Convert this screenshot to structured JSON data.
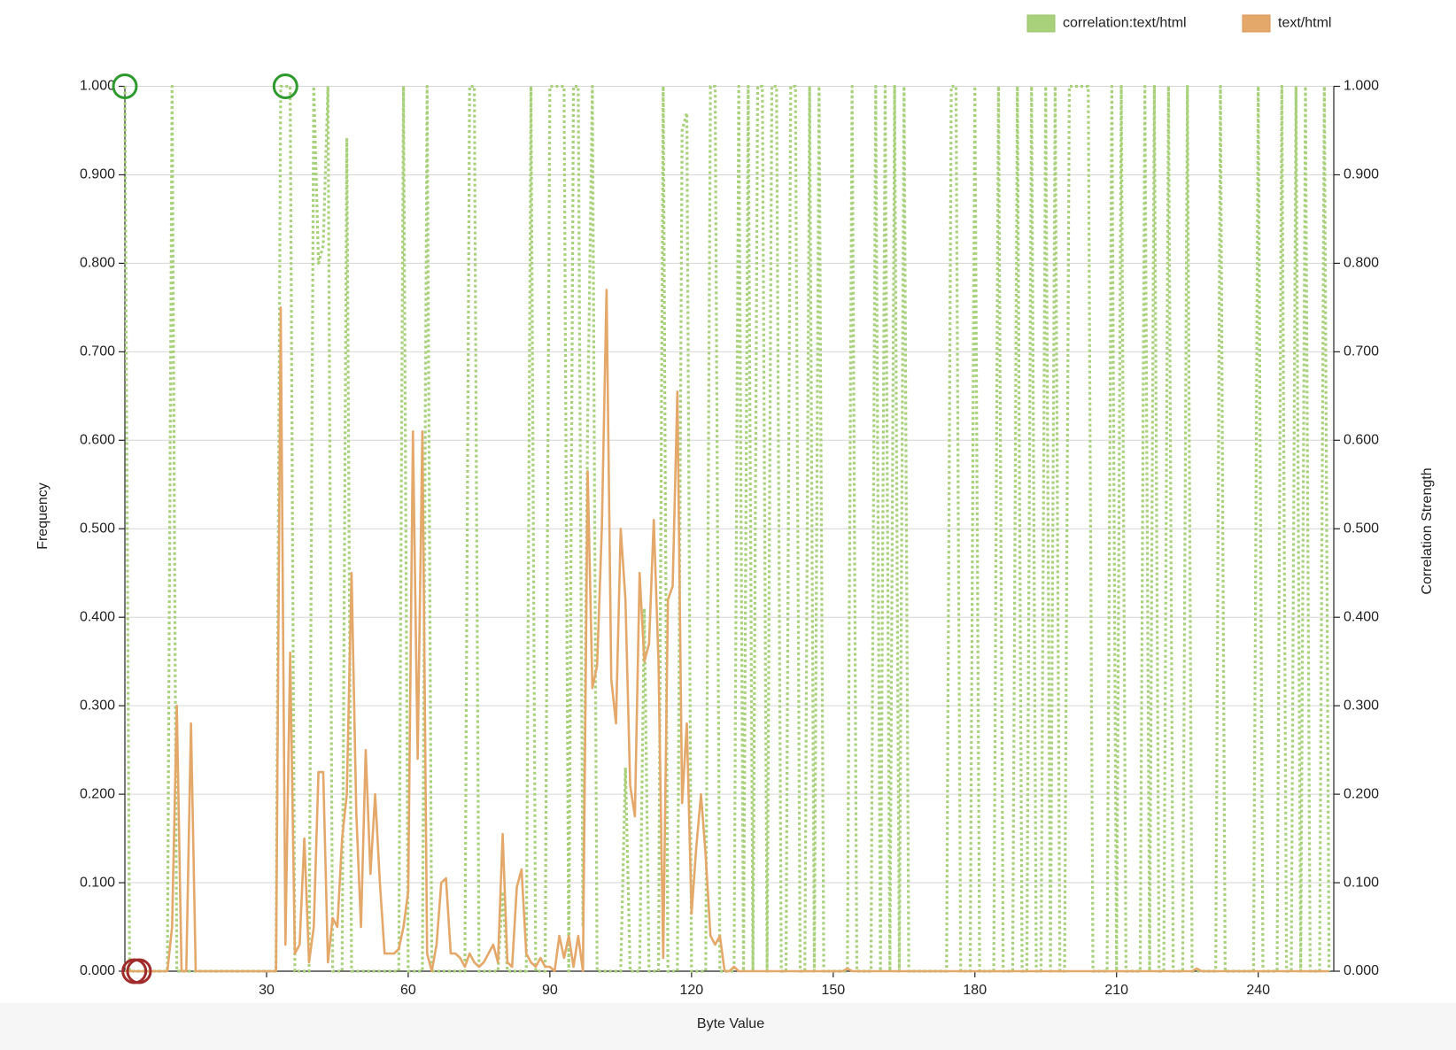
{
  "chart_data": {
    "type": "line",
    "x_label": "Byte Value",
    "y_label": "Frequency",
    "y2_label": "Correlation Strength",
    "legend": "top-right",
    "grid": true,
    "xlim": [
      0,
      256
    ],
    "xticks": [
      30,
      60,
      90,
      120,
      150,
      180,
      210,
      240
    ],
    "ylim": [
      0,
      1
    ],
    "yticks": [
      {
        "value": 0,
        "label": "0.000"
      },
      {
        "value": 0.1,
        "label": "0.100"
      },
      {
        "value": 0.2,
        "label": "0.200"
      },
      {
        "value": 0.3,
        "label": "0.300"
      },
      {
        "value": 0.4,
        "label": "0.400"
      },
      {
        "value": 0.5,
        "label": "0.500"
      },
      {
        "value": 0.6,
        "label": "0.600"
      },
      {
        "value": 0.7,
        "label": "0.700"
      },
      {
        "value": 0.8,
        "label": "0.800"
      },
      {
        "value": 0.9,
        "label": "0.900"
      },
      {
        "value": 1,
        "label": "1.000"
      }
    ],
    "y2lim": [
      0,
      1
    ],
    "y2ticks": [
      {
        "value": 0,
        "label": "0.000"
      },
      {
        "value": 0.1,
        "label": "0.100"
      },
      {
        "value": 0.2,
        "label": "0.200"
      },
      {
        "value": 0.3,
        "label": "0.300"
      },
      {
        "value": 0.4,
        "label": "0.400"
      },
      {
        "value": 0.5,
        "label": "0.500"
      },
      {
        "value": 0.6,
        "label": "0.600"
      },
      {
        "value": 0.7,
        "label": "0.700"
      },
      {
        "value": 0.8,
        "label": "0.800"
      },
      {
        "value": 0.9,
        "label": "0.900"
      },
      {
        "value": 1,
        "label": "1.000"
      }
    ],
    "x": [
      0,
      1,
      2,
      3,
      4,
      5,
      6,
      7,
      8,
      9,
      10,
      11,
      12,
      13,
      14,
      15,
      16,
      17,
      18,
      19,
      20,
      21,
      22,
      23,
      24,
      25,
      26,
      27,
      28,
      29,
      30,
      31,
      32,
      33,
      34,
      35,
      36,
      37,
      38,
      39,
      40,
      41,
      42,
      43,
      44,
      45,
      46,
      47,
      48,
      49,
      50,
      51,
      52,
      53,
      54,
      55,
      56,
      57,
      58,
      59,
      60,
      61,
      62,
      63,
      64,
      65,
      66,
      67,
      68,
      69,
      70,
      71,
      72,
      73,
      74,
      75,
      76,
      77,
      78,
      79,
      80,
      81,
      82,
      83,
      84,
      85,
      86,
      87,
      88,
      89,
      90,
      91,
      92,
      93,
      94,
      95,
      96,
      97,
      98,
      99,
      100,
      101,
      102,
      103,
      104,
      105,
      106,
      107,
      108,
      109,
      110,
      111,
      112,
      113,
      114,
      115,
      116,
      117,
      118,
      119,
      120,
      121,
      122,
      123,
      124,
      125,
      126,
      127,
      128,
      129,
      130,
      131,
      132,
      133,
      134,
      135,
      136,
      137,
      138,
      139,
      140,
      141,
      142,
      143,
      144,
      145,
      146,
      147,
      148,
      149,
      150,
      151,
      152,
      153,
      154,
      155,
      156,
      157,
      158,
      159,
      160,
      161,
      162,
      163,
      164,
      165,
      166,
      167,
      168,
      169,
      170,
      171,
      172,
      173,
      174,
      175,
      176,
      177,
      178,
      179,
      180,
      181,
      182,
      183,
      184,
      185,
      186,
      187,
      188,
      189,
      190,
      191,
      192,
      193,
      194,
      195,
      196,
      197,
      198,
      199,
      200,
      201,
      202,
      203,
      204,
      205,
      206,
      207,
      208,
      209,
      210,
      211,
      212,
      213,
      214,
      215,
      216,
      217,
      218,
      219,
      220,
      221,
      222,
      223,
      224,
      225,
      226,
      227,
      228,
      229,
      230,
      231,
      232,
      233,
      234,
      235,
      236,
      237,
      238,
      239,
      240,
      241,
      242,
      243,
      244,
      245,
      246,
      247,
      248,
      249,
      250,
      251,
      252,
      253,
      254,
      255
    ],
    "series": [
      {
        "name": "correlation:text/html",
        "color": "#a9d17c",
        "axis": "y2",
        "dashed": true,
        "values": [
          1,
          0,
          0,
          0,
          0,
          0,
          0,
          0,
          0,
          0,
          1,
          0,
          0,
          0,
          0,
          0,
          0,
          0,
          0,
          0,
          0,
          0,
          0,
          0,
          0,
          0,
          0,
          0,
          0,
          0,
          0,
          0,
          0,
          1,
          1,
          1,
          0,
          0,
          0,
          0,
          1,
          0.8,
          0.82,
          1,
          0,
          0,
          0,
          0.94,
          0,
          0,
          0,
          0,
          0,
          0,
          0,
          0,
          0,
          0,
          0,
          1,
          0,
          0,
          0,
          0,
          1,
          0,
          0,
          0,
          0,
          0,
          0,
          0,
          0,
          1,
          1,
          0,
          0,
          0,
          0,
          0,
          0.09,
          0,
          0,
          0,
          0,
          0,
          1,
          0,
          0,
          0,
          1,
          1,
          1,
          1,
          0,
          1,
          1,
          0.05,
          0.62,
          1,
          0,
          0,
          0,
          0,
          0,
          0,
          0.23,
          0,
          0,
          0,
          0.41,
          0,
          0,
          0,
          1,
          0,
          0,
          0,
          0.95,
          0.97,
          0,
          0,
          0,
          0,
          1,
          1,
          0,
          0,
          0,
          0,
          1,
          0,
          1,
          0,
          1,
          1,
          0,
          1,
          1,
          0,
          0,
          1,
          1,
          0,
          0,
          1,
          0,
          1,
          0,
          0,
          0,
          0,
          0,
          0,
          1,
          0,
          0,
          0,
          0,
          1,
          0,
          1,
          0,
          1,
          0,
          1,
          0,
          0,
          0,
          0,
          0,
          0,
          0,
          0,
          0,
          1,
          1,
          0,
          0,
          0,
          1,
          0,
          0,
          0,
          0,
          1,
          0,
          0,
          0,
          1,
          0,
          0,
          1,
          0,
          0,
          1,
          0,
          1,
          0,
          0,
          1,
          1,
          1,
          1,
          1,
          0,
          0,
          0,
          0,
          1,
          0,
          1,
          0,
          0,
          0,
          0,
          1,
          0,
          1,
          0,
          0,
          1,
          0,
          0,
          0,
          1,
          0,
          0,
          0,
          0,
          0,
          0,
          1,
          0,
          0,
          0,
          0,
          0,
          0,
          0,
          1,
          0,
          0,
          0,
          0,
          1,
          0,
          0,
          1,
          0,
          1,
          0,
          0,
          0,
          1,
          0
        ]
      },
      {
        "name": "text/html",
        "color": "#e3a86a",
        "axis": "y",
        "values": [
          0,
          0,
          0,
          0,
          0,
          0,
          0,
          0,
          0,
          0,
          0.05,
          0.3,
          0,
          0,
          0.28,
          0,
          0,
          0,
          0,
          0,
          0,
          0,
          0,
          0,
          0,
          0,
          0,
          0,
          0,
          0,
          0,
          0,
          0,
          0.75,
          0.03,
          0.36,
          0.02,
          0.03,
          0.15,
          0.01,
          0.05,
          0.225,
          0.225,
          0.01,
          0.06,
          0.05,
          0.15,
          0.2,
          0.45,
          0.18,
          0.05,
          0.25,
          0.11,
          0.2,
          0.1,
          0.02,
          0.02,
          0.02,
          0.025,
          0.05,
          0.09,
          0.61,
          0.24,
          0.61,
          0.02,
          0,
          0.03,
          0.1,
          0.105,
          0.02,
          0.02,
          0.015,
          0.005,
          0.02,
          0.01,
          0.005,
          0.01,
          0.02,
          0.03,
          0.01,
          0.155,
          0.01,
          0.005,
          0.095,
          0.115,
          0.02,
          0.01,
          0.005,
          0.015,
          0.005,
          0.005,
          0,
          0.04,
          0.015,
          0.04,
          0.005,
          0.04,
          0,
          0.565,
          0.32,
          0.345,
          0.5,
          0.77,
          0.33,
          0.28,
          0.5,
          0.42,
          0.21,
          0.175,
          0.45,
          0.35,
          0.37,
          0.51,
          0.35,
          0.015,
          0.42,
          0.435,
          0.655,
          0.19,
          0.28,
          0.065,
          0.14,
          0.2,
          0.13,
          0.04,
          0.03,
          0.04,
          0,
          0,
          0.005,
          0,
          0,
          0,
          0,
          0,
          0,
          0,
          0,
          0,
          0,
          0,
          0,
          0,
          0,
          0,
          0,
          0,
          0,
          0,
          0,
          0,
          0,
          0,
          0.003,
          0,
          0,
          0,
          0,
          0,
          0,
          0,
          0,
          0,
          0,
          0,
          0,
          0,
          0,
          0,
          0,
          0,
          0,
          0,
          0,
          0,
          0,
          0,
          0,
          0,
          0,
          0,
          0,
          0,
          0,
          0,
          0,
          0,
          0,
          0,
          0,
          0,
          0,
          0,
          0,
          0,
          0,
          0,
          0,
          0,
          0,
          0,
          0,
          0,
          0,
          0,
          0,
          0,
          0,
          0,
          0,
          0,
          0,
          0,
          0,
          0,
          0,
          0,
          0,
          0,
          0,
          0,
          0,
          0,
          0,
          0,
          0,
          0,
          0.003,
          0,
          0,
          0,
          0,
          0,
          0,
          0,
          0,
          0,
          0,
          0,
          0,
          0,
          0,
          0,
          0,
          0,
          0,
          0,
          0,
          0,
          0,
          0,
          0,
          0,
          0,
          0,
          0
        ]
      }
    ]
  }
}
